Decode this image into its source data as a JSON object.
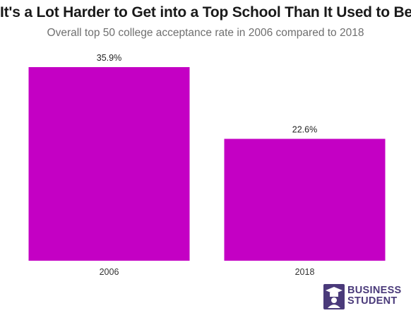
{
  "title": "It's a Lot Harder to Get into a Top School Than It Used to Be",
  "subtitle": "Overall top 50 college acceptance rate in 2006 compared to 2018",
  "bar_color": "#c400c4",
  "logo": {
    "line1": "BUSINESS",
    "line2": "STUDENT",
    "color": "#4a3a7a",
    "icon": "graduate-cap-icon"
  },
  "chart_data": {
    "type": "bar",
    "title": "It's a Lot Harder to Get into a Top School Than It Used to Be",
    "subtitle": "Overall top 50 college acceptance rate in 2006 compared to 2018",
    "categories": [
      "2006",
      "2018"
    ],
    "values": [
      35.9,
      22.6
    ],
    "value_labels": [
      "35.9%",
      "22.6%"
    ],
    "xlabel": "",
    "ylabel": "",
    "ylim": [
      0,
      35.9
    ],
    "grid": false,
    "legend": "none"
  }
}
